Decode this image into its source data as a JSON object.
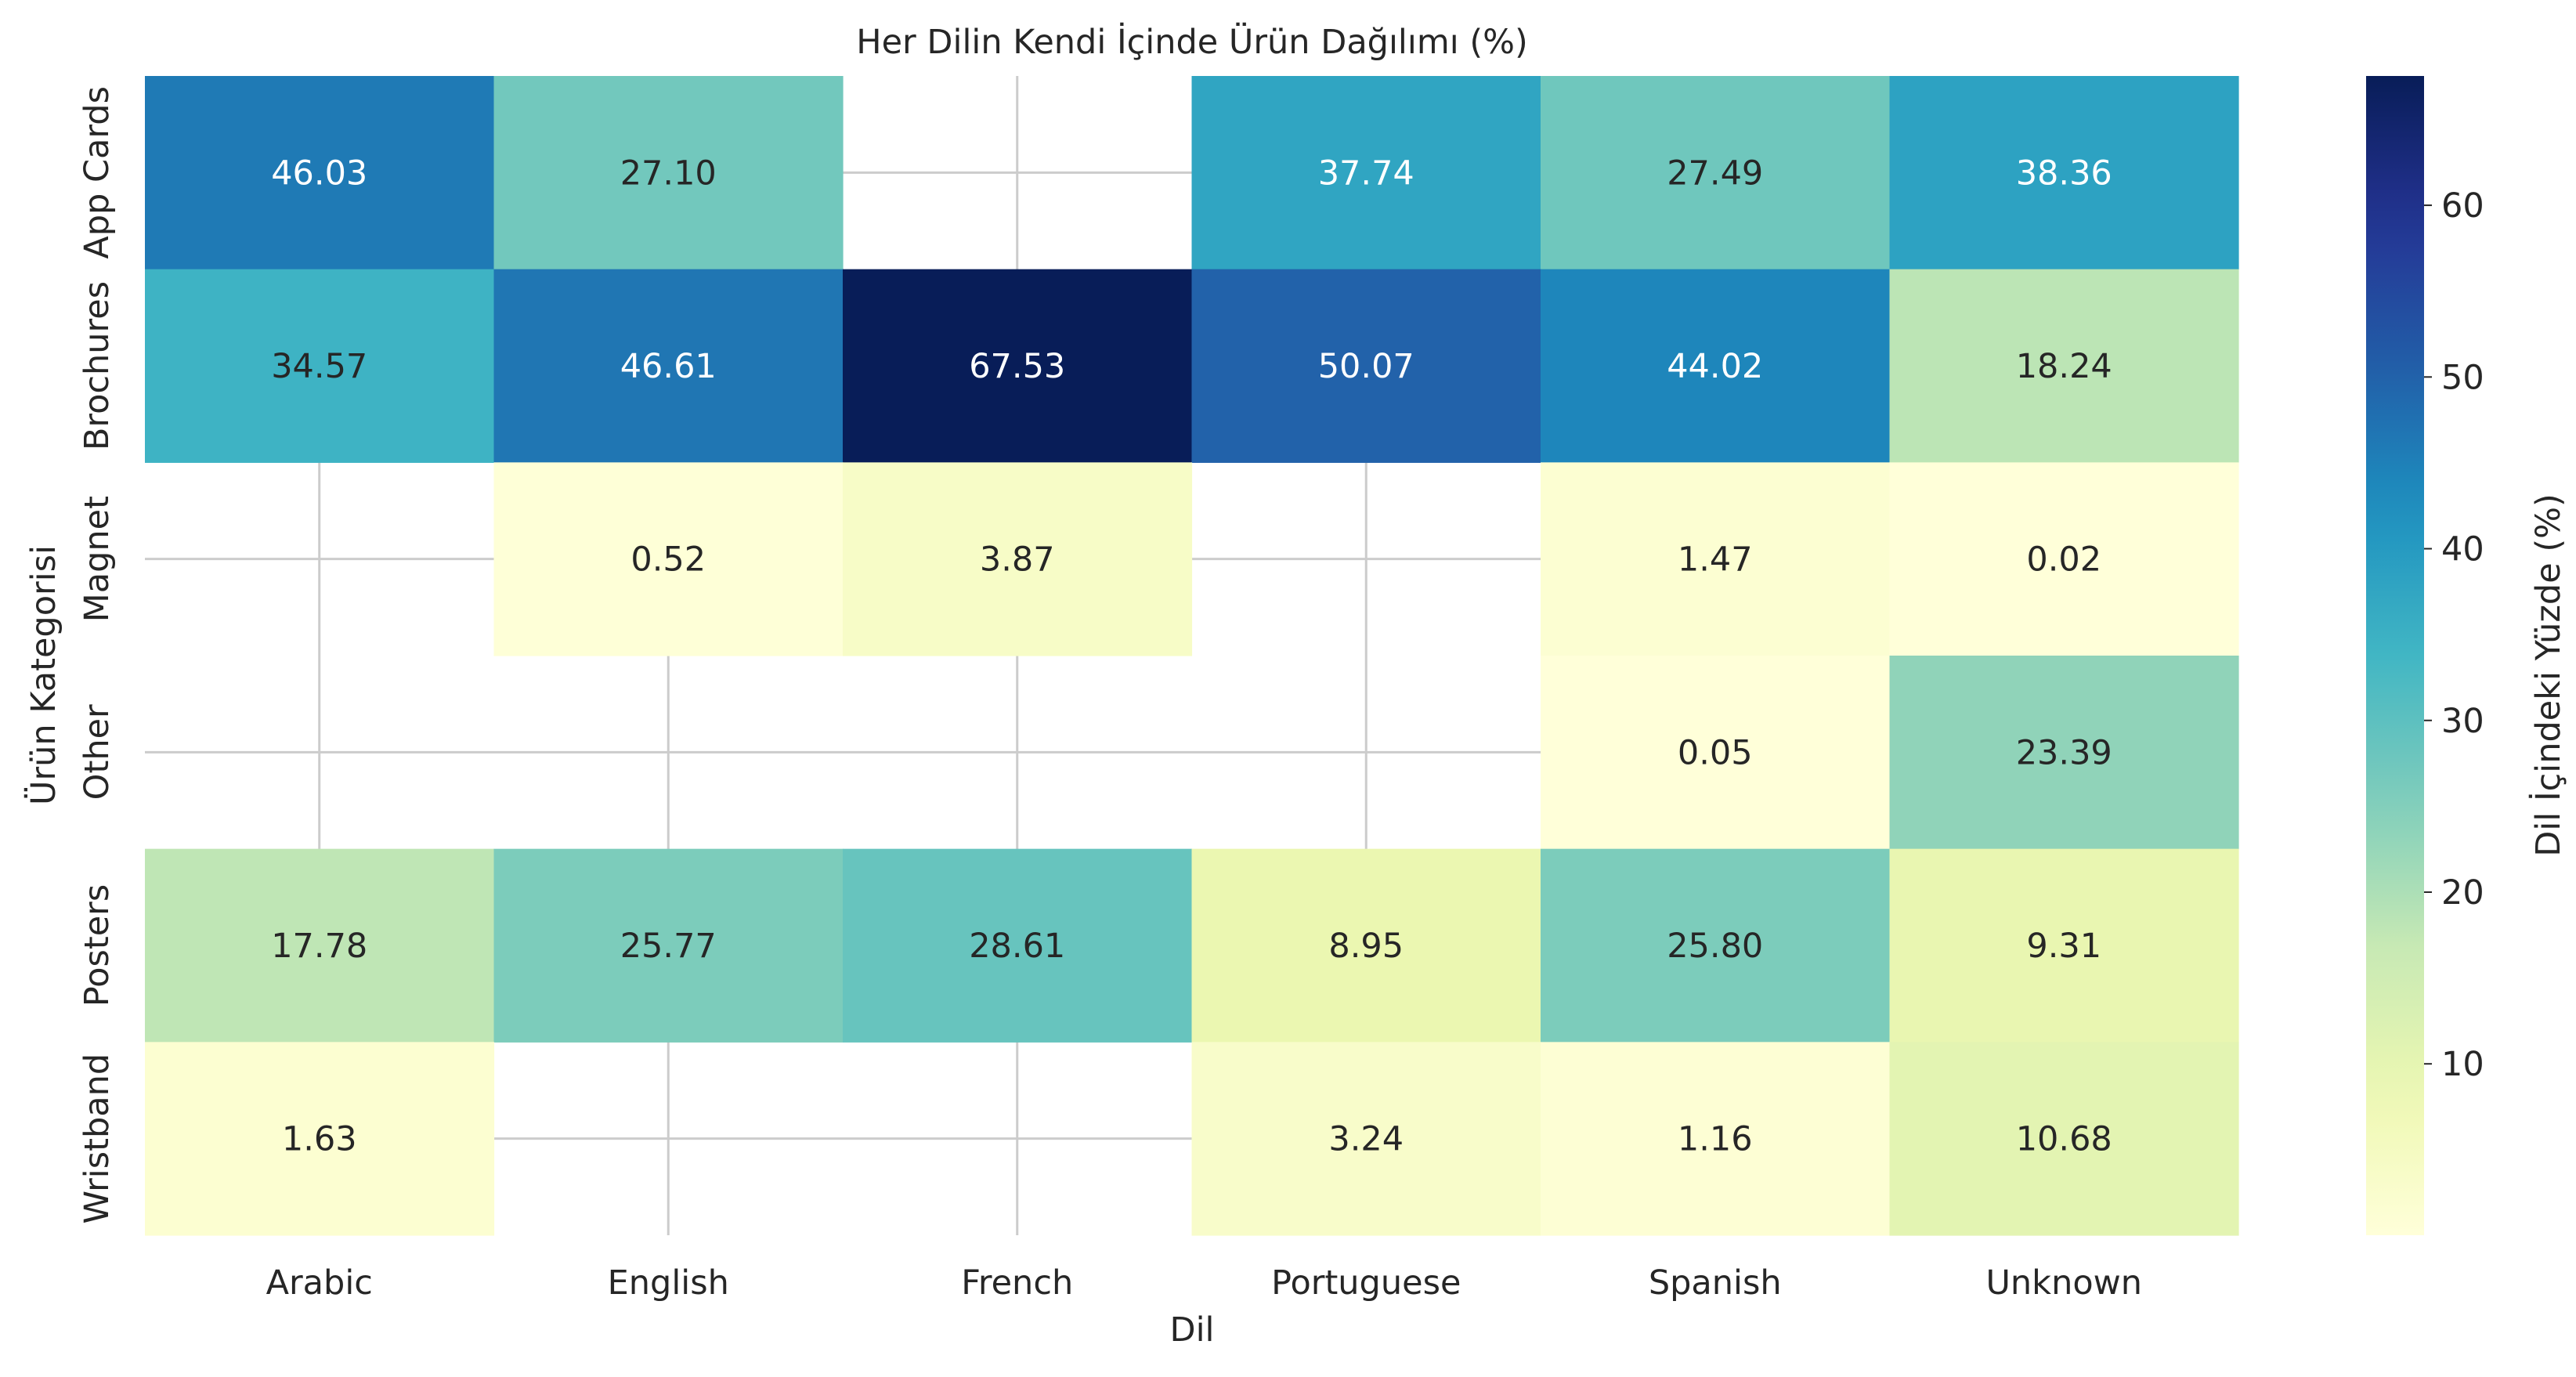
{
  "chart_data": {
    "type": "heatmap",
    "title": "Her Dilin Kendi İçinde Ürün Dağılımı (%)",
    "xlabel": "Dil",
    "ylabel": "Ürün Kategorisi",
    "x": [
      "Arabic",
      "English",
      "French",
      "Portuguese",
      "Spanish",
      "Unknown"
    ],
    "y": [
      "App Cards",
      "Brochures",
      "Magnet",
      "Other",
      "Posters",
      "Wristband"
    ],
    "values": [
      [
        46.03,
        27.1,
        null,
        37.74,
        27.49,
        38.36
      ],
      [
        34.57,
        46.61,
        67.53,
        50.07,
        44.02,
        18.24
      ],
      [
        null,
        0.52,
        3.87,
        null,
        1.47,
        0.02
      ],
      [
        null,
        null,
        null,
        null,
        0.05,
        23.39
      ],
      [
        17.78,
        25.77,
        28.61,
        8.95,
        25.8,
        9.31
      ],
      [
        1.63,
        null,
        null,
        3.24,
        1.16,
        10.68
      ]
    ],
    "value_format": "0.00",
    "colormap": "YlGnBu",
    "colorbar": {
      "label": "Dil İçindeki Yüzde (%)",
      "range": [
        0.02,
        67.53
      ],
      "ticks": [
        10,
        20,
        30,
        40,
        50,
        60
      ]
    },
    "grid": true,
    "missing_cells": "blank"
  }
}
